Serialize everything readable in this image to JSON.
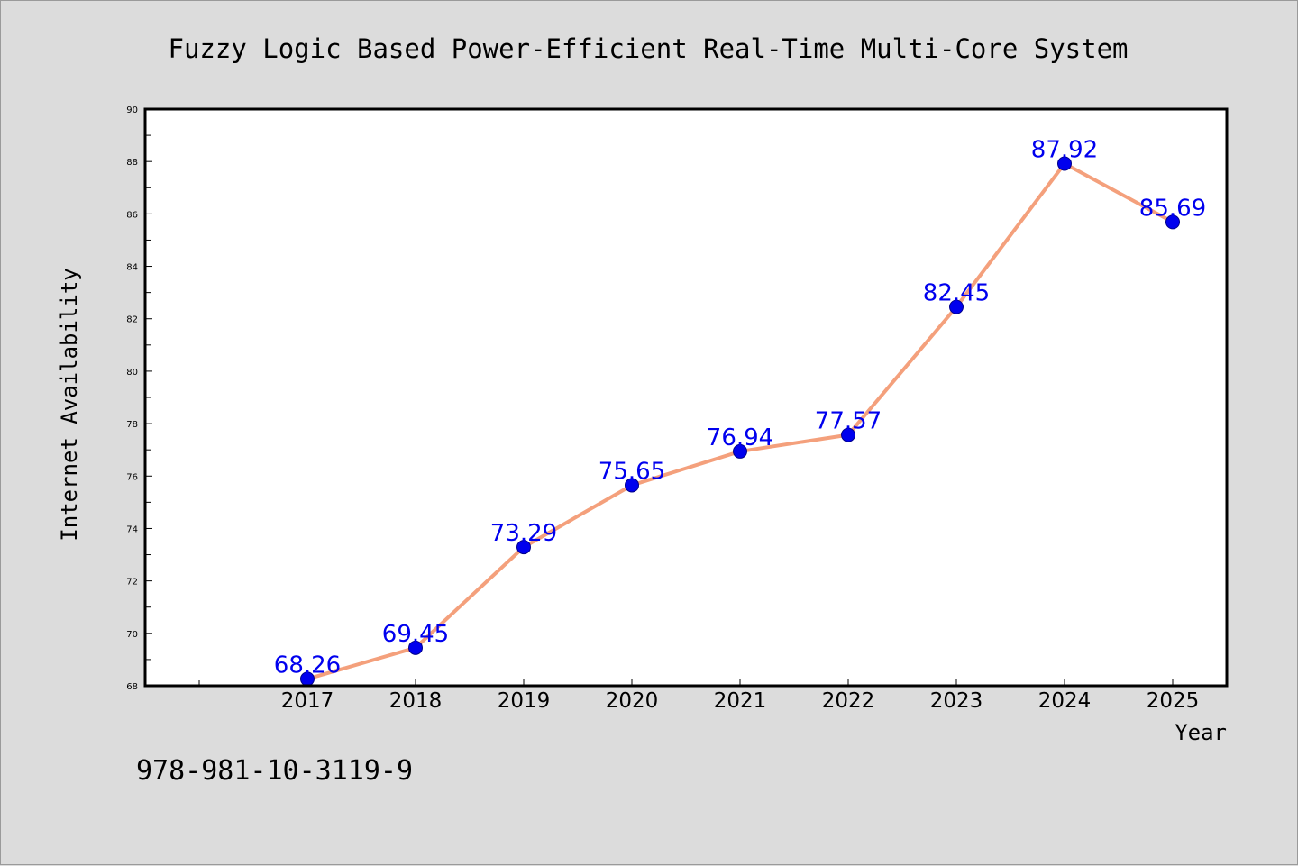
{
  "chart_data": {
    "type": "line",
    "title": "Fuzzy Logic Based Power-Efficient Real-Time Multi-Core System",
    "xlabel": "Year",
    "ylabel": "Internet Availability",
    "categories": [
      "2017",
      "2018",
      "2019",
      "2020",
      "2021",
      "2022",
      "2023",
      "2024",
      "2025"
    ],
    "series": [
      {
        "values": [
          68.26,
          69.45,
          73.29,
          75.65,
          76.94,
          77.57,
          82.45,
          87.92,
          85.69
        ],
        "labels": [
          "68.26",
          "69.45",
          "73.29",
          "75.65",
          "76.94",
          "77.57",
          "82.45",
          "87.92",
          "85.69"
        ]
      }
    ],
    "ylim": [
      68,
      90
    ],
    "yticks": [
      "68",
      "70",
      "72",
      "74",
      "76",
      "78",
      "80",
      "82",
      "84",
      "86",
      "88",
      "90"
    ],
    "grid": false,
    "line_color": "#f4a07c",
    "marker_color": "#0000ee",
    "label_color": "#0000ee"
  },
  "footer": {
    "isbn": "978-981-10-3119-9"
  }
}
